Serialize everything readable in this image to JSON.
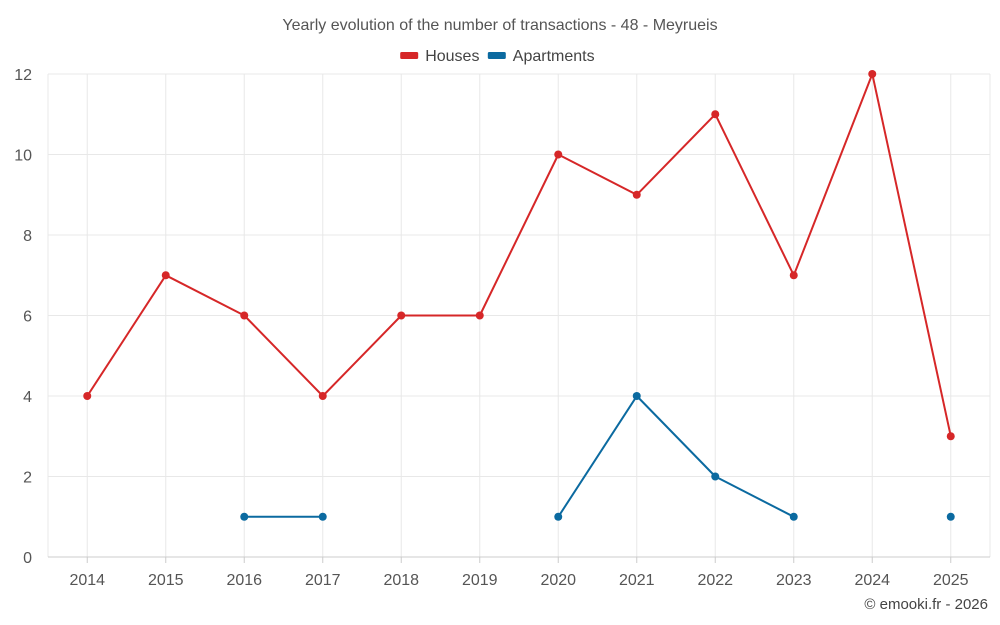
{
  "chart_data": {
    "type": "line",
    "title": "Yearly evolution of the number of transactions - 48 - Meyrueis",
    "categories": [
      "2014",
      "2015",
      "2016",
      "2017",
      "2018",
      "2019",
      "2020",
      "2021",
      "2022",
      "2023",
      "2024",
      "2025"
    ],
    "series": [
      {
        "name": "Houses",
        "color": "#d62728",
        "values": [
          4,
          7,
          6,
          4,
          6,
          6,
          10,
          9,
          11,
          7,
          12,
          3
        ]
      },
      {
        "name": "Apartments",
        "color": "#0b6aa0",
        "values": [
          null,
          null,
          1,
          1,
          null,
          null,
          1,
          4,
          2,
          1,
          null,
          1
        ]
      }
    ],
    "ylim": [
      0,
      12
    ],
    "yticks": [
      0,
      2,
      4,
      6,
      8,
      10,
      12
    ],
    "grid": true,
    "legend": "top-center",
    "xlabel": "",
    "ylabel": ""
  },
  "credit": "© emooki.fr - 2026"
}
